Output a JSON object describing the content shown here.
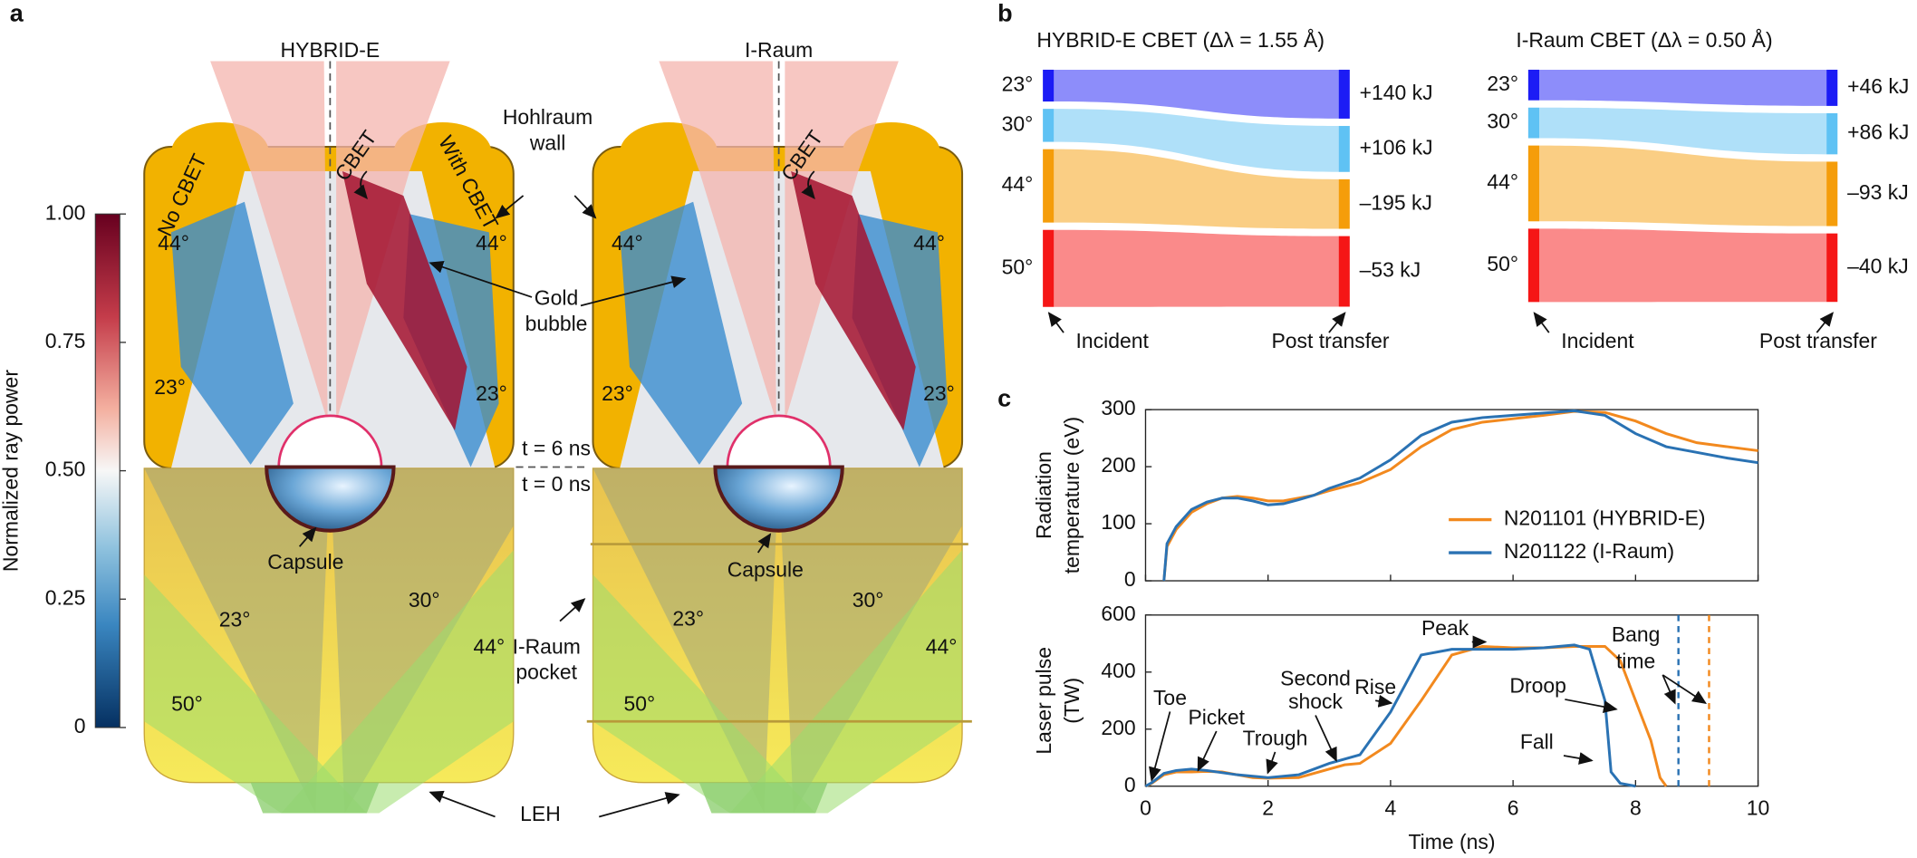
{
  "panel_letters": [
    "a",
    "b",
    "c"
  ],
  "panel_a": {
    "colorbar": {
      "label": "Normalized ray power",
      "lim": [
        0,
        1
      ],
      "ticks": [
        {
          "value": 1,
          "label": "1.00"
        },
        {
          "value": 0.75,
          "label": "0.75"
        },
        {
          "value": 0.5,
          "label": "0.50"
        },
        {
          "value": 0.25,
          "label": "0.25"
        },
        0
      ]
    },
    "labels": [
      "HYBRID-E",
      "I-Raum",
      "No CBET",
      "With CBET",
      "CBET",
      "CBET",
      "Hohlraum",
      "wall",
      "44°",
      "44°",
      "44°",
      "44°",
      "23°",
      "23°",
      "23°",
      "23°",
      "Gold",
      "bubble",
      "t = 6 ns",
      "t = 0 ns",
      "Capsule",
      "Capsule",
      "23°",
      "30°",
      "23°",
      "30°",
      "44°",
      "44°",
      "50°",
      "50°",
      "I-Raum",
      "pocket",
      "LEH"
    ]
  },
  "panel_b": [
    {
      "title": "HYBRID-E CBET (Δλ = 1.55 Å)",
      "beams": [
        "23°",
        "30°",
        "44°",
        "50°"
      ],
      "values": [
        140,
        106,
        -195,
        -53
      ],
      "value_labels": [
        "+140 kJ",
        "+106 kJ",
        "–195 kJ",
        "–53 kJ"
      ],
      "colors": [
        "#1c1cf5",
        "#5fc2f4",
        "#f59d0a",
        "#f51616"
      ],
      "incident_label": "Incident",
      "post_label": "Post transfer"
    },
    {
      "title": "I-Raum CBET (Δλ = 0.50 Å)",
      "beams": [
        "23°",
        "30°",
        "44°",
        "50°"
      ],
      "values": [
        46,
        86,
        -93,
        -40
      ],
      "value_labels": [
        "+46 kJ",
        "+86 kJ",
        "–93 kJ",
        "–40 kJ"
      ],
      "colors": [
        "#1c1cf5",
        "#5fc2f4",
        "#f59d0a",
        "#f51616"
      ],
      "incident_label": "Incident",
      "post_label": "Post transfer"
    }
  ],
  "chart_data": [
    {
      "type": "line",
      "ylabel": [
        "Radiation",
        "temperature (eV)"
      ],
      "xlim": [
        0,
        10
      ],
      "xticks": [
        0,
        2,
        4,
        6,
        8,
        10
      ],
      "xticklabels": false,
      "ylim": [
        0,
        300
      ],
      "yticks": [
        0,
        100,
        200,
        300
      ],
      "legend": "lower right",
      "series": [
        {
          "name": "N201101 (HYBRID-E)",
          "color": "#f2891e",
          "x": [
            0.3,
            0.35,
            0.5,
            0.75,
            1,
            1.25,
            1.5,
            1.75,
            2,
            2.25,
            2.5,
            2.75,
            3,
            3.5,
            4,
            4.5,
            5,
            5.5,
            6,
            6.5,
            7,
            7.5,
            8,
            8.5,
            9,
            9.5,
            10
          ],
          "values": [
            0,
            60,
            90,
            120,
            135,
            145,
            148,
            145,
            140,
            140,
            145,
            150,
            158,
            172,
            195,
            235,
            265,
            278,
            284,
            290,
            297,
            295,
            280,
            258,
            242,
            235,
            228
          ]
        },
        {
          "name": "N201122 (I-Raum)",
          "color": "#2a72b3",
          "x": [
            0.3,
            0.35,
            0.5,
            0.75,
            1,
            1.25,
            1.5,
            1.75,
            2,
            2.25,
            2.5,
            2.75,
            3,
            3.5,
            4,
            4.5,
            5,
            5.5,
            6,
            6.5,
            7,
            7.5,
            8,
            8.5,
            9,
            9.5,
            10
          ],
          "values": [
            0,
            65,
            95,
            125,
            138,
            145,
            145,
            140,
            133,
            135,
            142,
            150,
            162,
            180,
            212,
            255,
            278,
            286,
            290,
            294,
            298,
            290,
            258,
            235,
            225,
            215,
            207
          ]
        }
      ]
    },
    {
      "type": "line",
      "ylabel": [
        "Laser pulse",
        "(TW)"
      ],
      "xlabel": "Time (ns)",
      "xlim": [
        0,
        10
      ],
      "xticks": [
        0,
        2,
        4,
        6,
        8,
        10
      ],
      "ylim": [
        0,
        600
      ],
      "yticks": [
        0,
        200,
        400,
        600
      ],
      "series": [
        {
          "name": "N201101 (HYBRID-E)",
          "color": "#f2891e",
          "x": [
            0,
            0.1,
            0.3,
            0.5,
            0.75,
            1,
            1.25,
            1.5,
            1.75,
            2,
            2.5,
            3,
            3.25,
            3.5,
            4,
            4.5,
            5,
            5.5,
            6,
            6.5,
            7,
            7.5,
            7.75,
            8,
            8.25,
            8.4,
            8.5
          ],
          "values": [
            0,
            10,
            40,
            50,
            50,
            52,
            50,
            40,
            30,
            28,
            30,
            60,
            75,
            80,
            150,
            300,
            460,
            490,
            485,
            485,
            490,
            490,
            440,
            300,
            160,
            30,
            0
          ]
        },
        {
          "name": "N201122 (I-Raum)",
          "color": "#2a72b3",
          "x": [
            0,
            0.1,
            0.3,
            0.5,
            0.75,
            1,
            1.5,
            2,
            2.5,
            3,
            3.5,
            4,
            4.5,
            5,
            5.5,
            6,
            6.5,
            7,
            7.25,
            7.5,
            7.6,
            7.75,
            8
          ],
          "values": [
            0,
            12,
            45,
            55,
            60,
            55,
            40,
            30,
            40,
            80,
            110,
            260,
            460,
            480,
            480,
            480,
            485,
            495,
            480,
            300,
            50,
            10,
            0
          ]
        }
      ],
      "vlines": [
        {
          "x": 8.7,
          "color": "#2a72b3"
        },
        {
          "x": 9.2,
          "color": "#f2891e"
        }
      ],
      "annotations": [
        "Toe",
        "Picket",
        "Trough",
        "Second",
        "shock",
        "Rise",
        "Peak",
        "Droop",
        "Fall",
        "Bang",
        "time"
      ]
    }
  ]
}
